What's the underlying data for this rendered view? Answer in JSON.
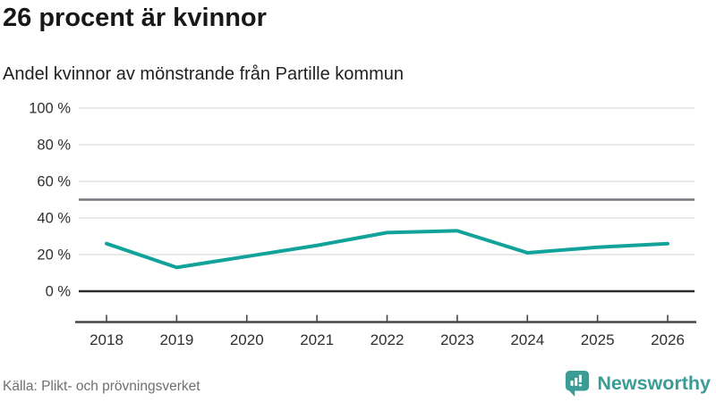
{
  "header": {
    "title": "26 procent är kvinnor",
    "subtitle": "Andel kvinnor av mönstrande från Partille kommun"
  },
  "chart_data": {
    "type": "line",
    "title": "26 procent är kvinnor",
    "subtitle": "Andel kvinnor av mönstrande från Partille kommun",
    "x": [
      "2018",
      "2019",
      "2020",
      "2021",
      "2022",
      "2023",
      "2024",
      "2025",
      "2026"
    ],
    "series": [
      {
        "name": "Andel kvinnor av mönstrande från Partille kommun",
        "values": [
          26,
          13,
          19,
          25,
          32,
          33,
          21,
          24,
          26
        ]
      }
    ],
    "unit": "%",
    "xlabel": "",
    "ylabel": "",
    "ylim": [
      0,
      100
    ],
    "yticks": [
      0,
      20,
      40,
      60,
      80,
      100
    ],
    "ytick_suffix": " %",
    "reference_line": 50,
    "grid": true,
    "legend": "none"
  },
  "footer": {
    "source": "Källa: Plikt- och prövningsverket",
    "brand": "Newsworthy"
  },
  "colors": {
    "line": "#11a29a",
    "grid": "#e2e2e2",
    "reference_line": "#75757d",
    "zero_line": "#2c2c2c",
    "axis": "#474747",
    "tick_text": "#2f2f2f",
    "brand": "#3b9c96"
  }
}
